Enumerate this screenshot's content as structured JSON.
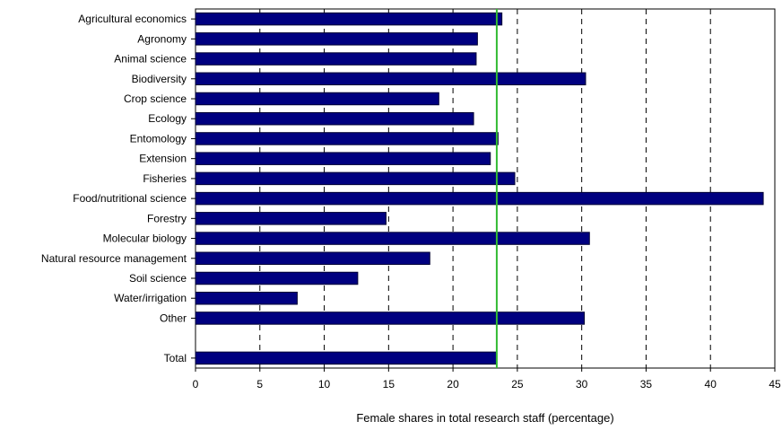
{
  "chart_data": {
    "type": "bar",
    "orientation": "horizontal",
    "categories": [
      "Agricultural economics",
      "Agronomy",
      "Animal science",
      "Biodiversity",
      "Crop science",
      "Ecology",
      "Entomology",
      "Extension",
      "Fisheries",
      "Food/nutritional science",
      "Forestry",
      "Molecular biology",
      "Natural resource management",
      "Soil science",
      "Water/irrigation",
      "Other",
      "",
      "Total"
    ],
    "values": [
      23.8,
      21.9,
      21.8,
      30.3,
      18.9,
      21.6,
      23.5,
      22.9,
      24.8,
      44.1,
      14.8,
      30.6,
      18.2,
      12.6,
      7.9,
      30.2,
      null,
      23.4
    ],
    "xlabel": "Female shares in total research staff (percentage)",
    "ylabel": "",
    "xlim": [
      0,
      45
    ],
    "xticks": [
      0,
      5,
      10,
      15,
      20,
      25,
      30,
      35,
      40,
      45
    ],
    "grid": "vertical dashed",
    "reference_line": {
      "value": 23.4
    },
    "colors": {
      "bar_fill": "#000080",
      "bar_stroke": "#000033",
      "reference_line": "#33bb33",
      "grid": "#000000",
      "axis": "#000000"
    }
  }
}
